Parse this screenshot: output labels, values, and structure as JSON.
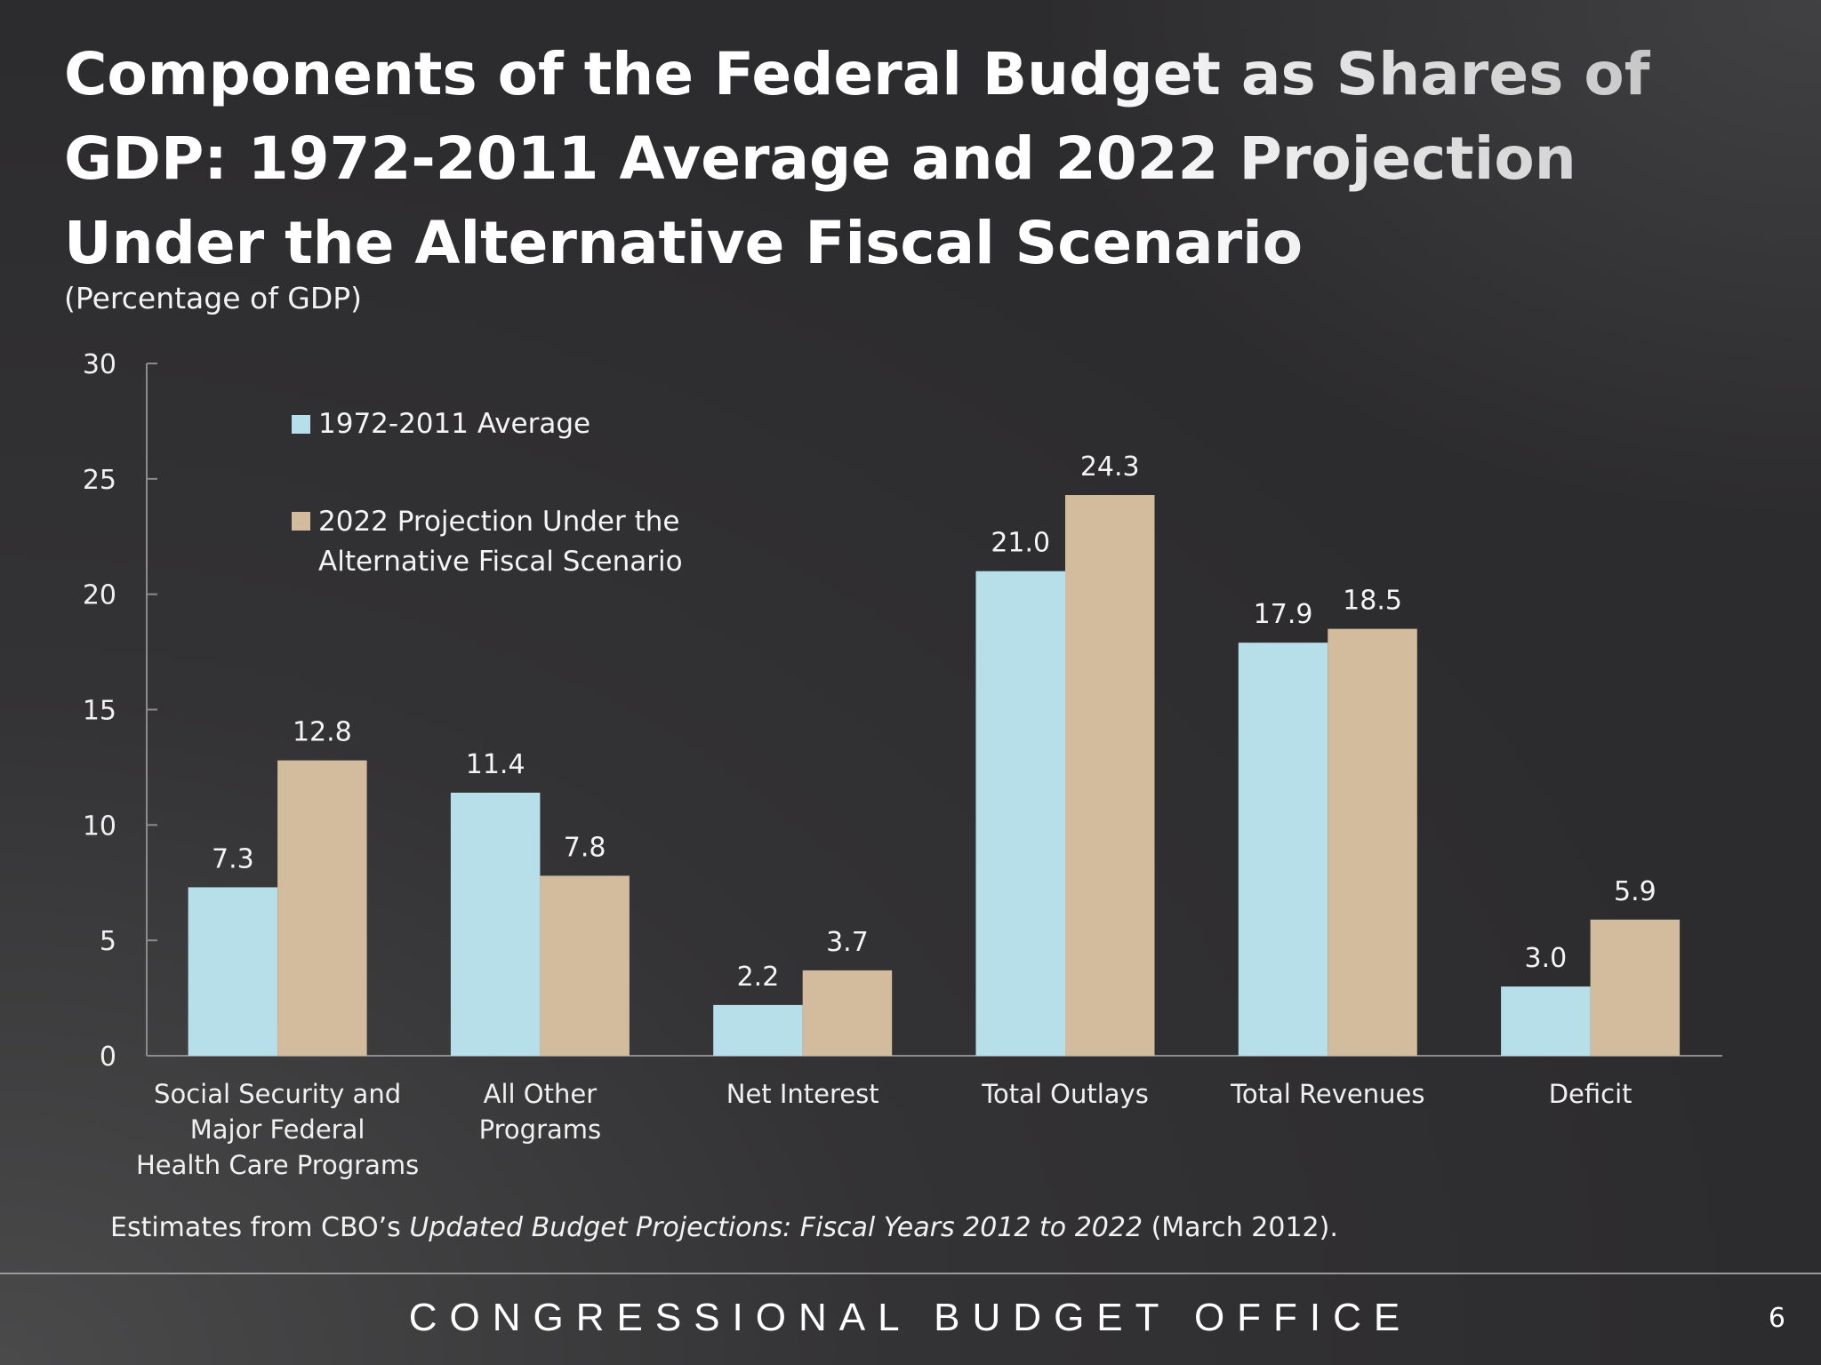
{
  "slide": {
    "title": "Components of the Federal Budget as Shares of GDP: 1972-2011 Average and 2022 Projection Under the Alternative Fiscal Scenario",
    "subtitle": "(Percentage of GDP)",
    "note_prefix": "Estimates from CBO’s ",
    "note_italic": "Updated Budget Projections: Fiscal Years 2012 to 2022",
    "note_suffix": " (March 2012).",
    "footer": "CONGRESSIONAL BUDGET OFFICE",
    "page_number": "6"
  },
  "chart_data": {
    "type": "bar",
    "title": "Components of the Federal Budget as Shares of GDP: 1972-2011 Average and 2022 Projection Under the Alternative Fiscal Scenario",
    "ylabel": "(Percentage of GDP)",
    "ylim": [
      0,
      30
    ],
    "yticks": [
      0,
      5,
      10,
      15,
      20,
      25,
      30
    ],
    "grid": false,
    "legend_position": "top-left",
    "categories": [
      [
        "Social Security and",
        "Major Federal",
        "Health Care Programs"
      ],
      [
        "All Other",
        "Programs"
      ],
      [
        "Net Interest"
      ],
      [
        "Total Outlays"
      ],
      [
        "Total Revenues"
      ],
      [
        "Deficit"
      ]
    ],
    "series": [
      {
        "name": "1972-2011 Average",
        "color": "#b7dfe9",
        "values": [
          7.3,
          11.4,
          2.2,
          21.0,
          17.9,
          3.0
        ]
      },
      {
        "name": "2022 Projection Under the Alternative Fiscal Scenario",
        "name_lines": [
          "2022 Projection Under the",
          "Alternative Fiscal Scenario"
        ],
        "color": "#d2bc9d",
        "values": [
          12.8,
          7.8,
          3.7,
          24.3,
          18.5,
          5.9
        ]
      }
    ]
  }
}
